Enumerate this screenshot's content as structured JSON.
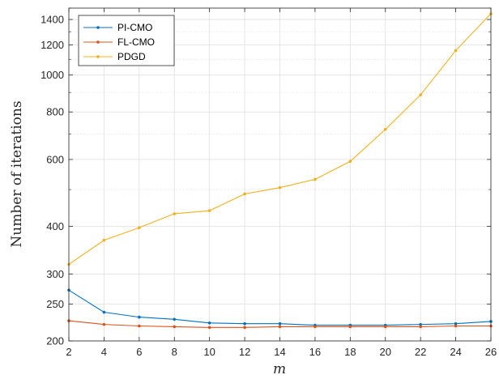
{
  "chart_data": {
    "type": "line",
    "xlabel": "m",
    "ylabel": "Number of iterations",
    "x": [
      2,
      4,
      6,
      8,
      10,
      12,
      14,
      16,
      18,
      20,
      22,
      24,
      26
    ],
    "xlim": [
      2,
      26
    ],
    "ylim": [
      200,
      1500
    ],
    "yscale": "log",
    "xticks": [
      2,
      4,
      6,
      8,
      10,
      12,
      14,
      16,
      18,
      20,
      22,
      24,
      26
    ],
    "yticks": [
      200,
      250,
      300,
      400,
      600,
      800,
      1000,
      1200,
      1400
    ],
    "grid": true,
    "legend_position": "top-left",
    "series": [
      {
        "name": "PI-CMO",
        "color": "#0072BD",
        "values": [
          272,
          238,
          231,
          228,
          223,
          222,
          222,
          220,
          220,
          220,
          221,
          222,
          225
        ]
      },
      {
        "name": "FL-CMO",
        "color": "#D95319",
        "values": [
          226,
          221,
          219,
          218,
          217,
          217,
          218,
          218,
          218,
          218,
          218,
          219,
          219
        ]
      },
      {
        "name": "PDGD",
        "color": "#EDB120",
        "values": [
          318,
          368,
          397,
          432,
          440,
          487,
          506,
          532,
          593,
          720,
          887,
          1160,
          1450
        ]
      }
    ]
  }
}
